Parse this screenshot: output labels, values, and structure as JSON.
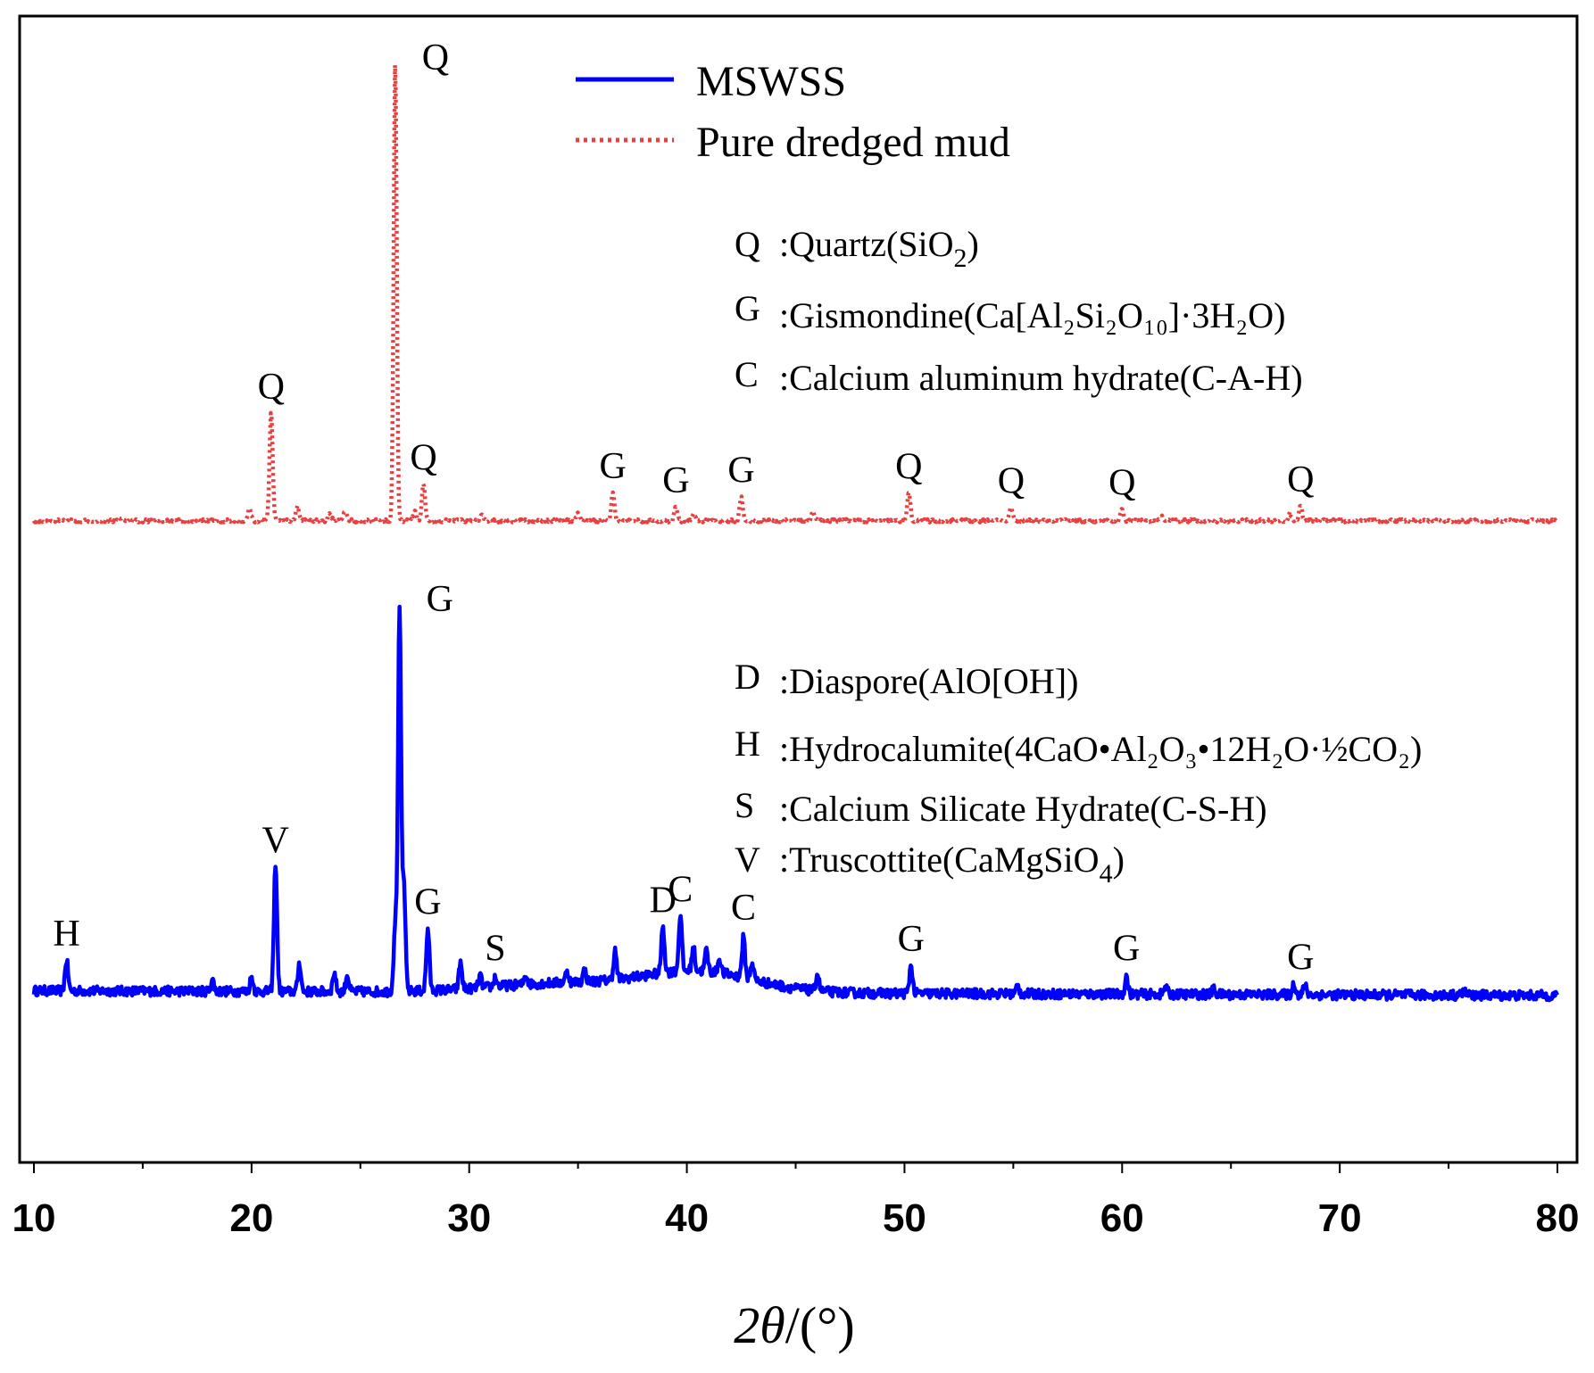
{
  "chart_data": {
    "type": "line",
    "title": "",
    "xlabel": "2θ/(°)",
    "xlabel_var": "2θ",
    "xlabel_unit": "/(°)",
    "ylabel": "",
    "xlim": [
      10,
      80
    ],
    "ylim": [
      0,
      100
    ],
    "xticks": [
      10,
      20,
      30,
      40,
      50,
      60,
      70,
      80
    ],
    "minor_step": 5,
    "legend": [
      {
        "name": "MSWSS",
        "style": "solid",
        "color": "#0000ff"
      },
      {
        "name": "Pure dredged mud",
        "style": "dotted",
        "color": "#e84040"
      }
    ],
    "series": [
      {
        "name": "MSWSS",
        "color": "#0000ff",
        "baseline": 6.0,
        "peaks": [
          [
            11.5,
            3.2
          ],
          [
            18.2,
            1.2
          ],
          [
            20.0,
            1.5
          ],
          [
            21.1,
            13.5
          ],
          [
            22.2,
            3.0
          ],
          [
            23.8,
            2.0
          ],
          [
            24.4,
            1.8
          ],
          [
            26.6,
            7.0
          ],
          [
            26.8,
            40.0
          ],
          [
            27.0,
            11.0
          ],
          [
            28.1,
            6.5
          ],
          [
            29.6,
            2.8
          ],
          [
            30.5,
            1.2
          ],
          [
            31.2,
            1.0
          ],
          [
            32.6,
            1.0
          ],
          [
            34.5,
            1.2
          ],
          [
            35.3,
            1.2
          ],
          [
            36.7,
            3.0
          ],
          [
            38.9,
            5.0
          ],
          [
            39.7,
            6.0
          ],
          [
            40.3,
            2.5
          ],
          [
            40.9,
            2.2
          ],
          [
            41.5,
            1.5
          ],
          [
            42.6,
            4.2
          ],
          [
            43.0,
            1.8
          ],
          [
            46.0,
            1.8
          ],
          [
            50.3,
            3.0
          ],
          [
            55.2,
            0.8
          ],
          [
            60.2,
            1.8
          ],
          [
            62.0,
            0.8
          ],
          [
            64.2,
            0.6
          ],
          [
            67.9,
            1.2
          ],
          [
            68.4,
            1.0
          ],
          [
            75.7,
            0.5
          ]
        ],
        "hump": {
          "center": 40.5,
          "width": 2.6,
          "height": 2.2
        }
      },
      {
        "name": "Pure dredged mud",
        "color": "#e84040",
        "baseline": 55.0,
        "peaks": [
          [
            14.0,
            0.4
          ],
          [
            19.9,
            1.2
          ],
          [
            20.9,
            11.5
          ],
          [
            22.1,
            1.5
          ],
          [
            23.6,
            0.8
          ],
          [
            24.3,
            1.0
          ],
          [
            26.6,
            48.0
          ],
          [
            27.5,
            1.0
          ],
          [
            27.9,
            4.0
          ],
          [
            30.6,
            0.6
          ],
          [
            35.0,
            0.8
          ],
          [
            36.6,
            3.0
          ],
          [
            39.5,
            1.5
          ],
          [
            40.3,
            0.8
          ],
          [
            42.5,
            2.5
          ],
          [
            45.8,
            1.0
          ],
          [
            50.2,
            3.0
          ],
          [
            54.9,
            1.3
          ],
          [
            60.0,
            1.2
          ],
          [
            61.8,
            0.5
          ],
          [
            67.7,
            0.8
          ],
          [
            68.2,
            1.6
          ]
        ]
      }
    ],
    "peak_labels": [
      {
        "series": "Pure dredged mud",
        "x": 26.6,
        "text": "Q"
      },
      {
        "series": "Pure dredged mud",
        "x": 20.9,
        "text": "Q"
      },
      {
        "series": "Pure dredged mud",
        "x": 27.9,
        "text": "Q"
      },
      {
        "series": "Pure dredged mud",
        "x": 36.6,
        "text": "G"
      },
      {
        "series": "Pure dredged mud",
        "x": 39.5,
        "text": "G"
      },
      {
        "series": "Pure dredged mud",
        "x": 42.5,
        "text": "G"
      },
      {
        "series": "Pure dredged mud",
        "x": 50.2,
        "text": "Q"
      },
      {
        "series": "Pure dredged mud",
        "x": 54.9,
        "text": "Q"
      },
      {
        "series": "Pure dredged mud",
        "x": 60.0,
        "text": "Q"
      },
      {
        "series": "Pure dredged mud",
        "x": 68.2,
        "text": "Q"
      },
      {
        "series": "MSWSS",
        "x": 26.8,
        "text": "G"
      },
      {
        "series": "MSWSS",
        "x": 21.1,
        "text": "V"
      },
      {
        "series": "MSWSS",
        "x": 11.5,
        "text": "H"
      },
      {
        "series": "MSWSS",
        "x": 28.1,
        "text": "G"
      },
      {
        "series": "MSWSS",
        "x": 31.2,
        "text": "S"
      },
      {
        "series": "MSWSS",
        "x": 38.9,
        "text": "D"
      },
      {
        "series": "MSWSS",
        "x": 39.7,
        "text": "C"
      },
      {
        "series": "MSWSS",
        "x": 42.6,
        "text": "C"
      },
      {
        "series": "MSWSS",
        "x": 50.3,
        "text": "G"
      },
      {
        "series": "MSWSS",
        "x": 60.2,
        "text": "G"
      },
      {
        "series": "MSWSS",
        "x": 68.2,
        "text": "G"
      }
    ],
    "phase_key_top": [
      {
        "letter": "Q",
        "prefix": ":Quartz(SiO",
        "sub": "2",
        "suffix": ")"
      },
      {
        "letter": "G",
        "text": ":Gismondine(Ca[Al₂Si₂O₁₀]·3H₂O)"
      },
      {
        "letter": "C",
        "text": ":Calcium aluminum hydrate(C-A-H)"
      }
    ],
    "phase_key_bottom": [
      {
        "letter": "D",
        "text": ":Diaspore(AlO[OH])"
      },
      {
        "letter": "H",
        "text": ":Hydrocalumite(4CaO•Al₂O₃•12H₂O·½CO₂)"
      },
      {
        "letter": "S",
        "text": ":Calcium Silicate Hydrate(C-S-H)"
      },
      {
        "letter": "V",
        "prefix": ":Truscottite(CaMgSiO",
        "sub": "4",
        "suffix": ")"
      }
    ]
  }
}
